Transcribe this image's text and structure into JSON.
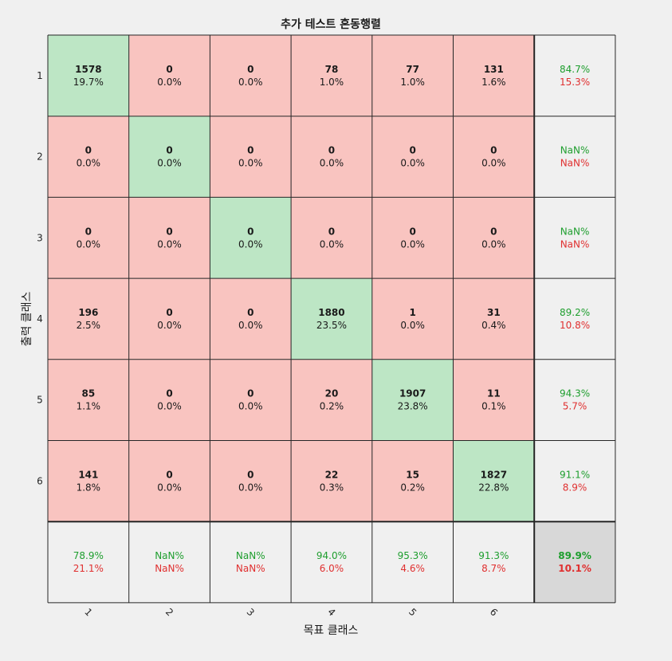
{
  "chart_data": {
    "type": "heatmap",
    "title": "추가 테스트 혼동행렬",
    "xlabel": "목표 클래스",
    "ylabel": "출력 클래스",
    "classes": [
      "1",
      "2",
      "3",
      "4",
      "5",
      "6"
    ],
    "matrix": [
      [
        1578,
        0,
        0,
        78,
        77,
        131
      ],
      [
        0,
        0,
        0,
        0,
        0,
        0
      ],
      [
        0,
        0,
        0,
        0,
        0,
        0
      ],
      [
        196,
        0,
        0,
        1880,
        1,
        31
      ],
      [
        85,
        0,
        0,
        20,
        1907,
        11
      ],
      [
        141,
        0,
        0,
        22,
        15,
        1827
      ]
    ],
    "matrix_percent": [
      [
        "19.7%",
        "0.0%",
        "0.0%",
        "1.0%",
        "1.0%",
        "1.6%"
      ],
      [
        "0.0%",
        "0.0%",
        "0.0%",
        "0.0%",
        "0.0%",
        "0.0%"
      ],
      [
        "0.0%",
        "0.0%",
        "0.0%",
        "0.0%",
        "0.0%",
        "0.0%"
      ],
      [
        "2.5%",
        "0.0%",
        "0.0%",
        "23.5%",
        "0.0%",
        "0.4%"
      ],
      [
        "1.1%",
        "0.0%",
        "0.0%",
        "0.2%",
        "23.8%",
        "0.1%"
      ],
      [
        "1.8%",
        "0.0%",
        "0.0%",
        "0.3%",
        "0.2%",
        "22.8%"
      ]
    ],
    "row_summary": [
      {
        "correct": "84.7%",
        "incorrect": "15.3%"
      },
      {
        "correct": "NaN%",
        "incorrect": "NaN%"
      },
      {
        "correct": "NaN%",
        "incorrect": "NaN%"
      },
      {
        "correct": "89.2%",
        "incorrect": "10.8%"
      },
      {
        "correct": "94.3%",
        "incorrect": "5.7%"
      },
      {
        "correct": "91.1%",
        "incorrect": "8.9%"
      }
    ],
    "column_summary": [
      {
        "correct": "78.9%",
        "incorrect": "21.1%"
      },
      {
        "correct": "NaN%",
        "incorrect": "NaN%"
      },
      {
        "correct": "NaN%",
        "incorrect": "NaN%"
      },
      {
        "correct": "94.0%",
        "incorrect": "6.0%"
      },
      {
        "correct": "95.3%",
        "incorrect": "4.6%"
      },
      {
        "correct": "91.3%",
        "incorrect": "8.7%"
      }
    ],
    "overall": {
      "correct": "89.9%",
      "incorrect": "10.1%"
    }
  },
  "colors": {
    "diagonal": "#bde6c5",
    "off_diagonal": "#f9c4c0",
    "summary": "#f0f0f0",
    "overall": "#d8d8d8",
    "grid_line": "#262626",
    "text_correct": "#1e9e2e",
    "text_incorrect": "#e03030"
  }
}
